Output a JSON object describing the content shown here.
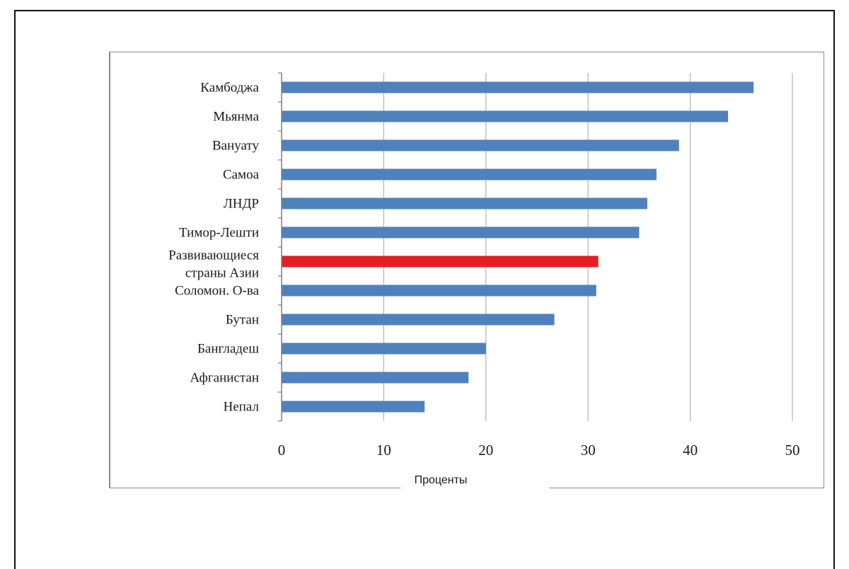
{
  "chart_data": {
    "type": "bar",
    "orientation": "horizontal",
    "categories": [
      "Камбоджа",
      "Мьянма",
      "Вануату",
      "Самоа",
      "ЛНДР",
      "Тимор-Лешти",
      "Развивающиеся страны Азии",
      "Соломон. О-ва",
      "Бутан",
      "Бангладеш",
      "Афганистан",
      "Непал"
    ],
    "values": [
      46.2,
      43.7,
      38.9,
      36.7,
      35.8,
      35.0,
      31.0,
      30.8,
      26.7,
      20.0,
      18.3,
      14.0
    ],
    "highlight_category": "Развивающиеся страны Азии",
    "colors": {
      "bar": "#4f81bd",
      "highlight": "#e31e24",
      "grid": "#b3b3b3",
      "axis": "#7f7f7f"
    },
    "xlabel": "Проценты",
    "ylabel": "",
    "title": "",
    "xlim": [
      0,
      50
    ],
    "xticks": [
      0,
      10,
      20,
      30,
      40,
      50
    ],
    "grid": "vertical"
  }
}
